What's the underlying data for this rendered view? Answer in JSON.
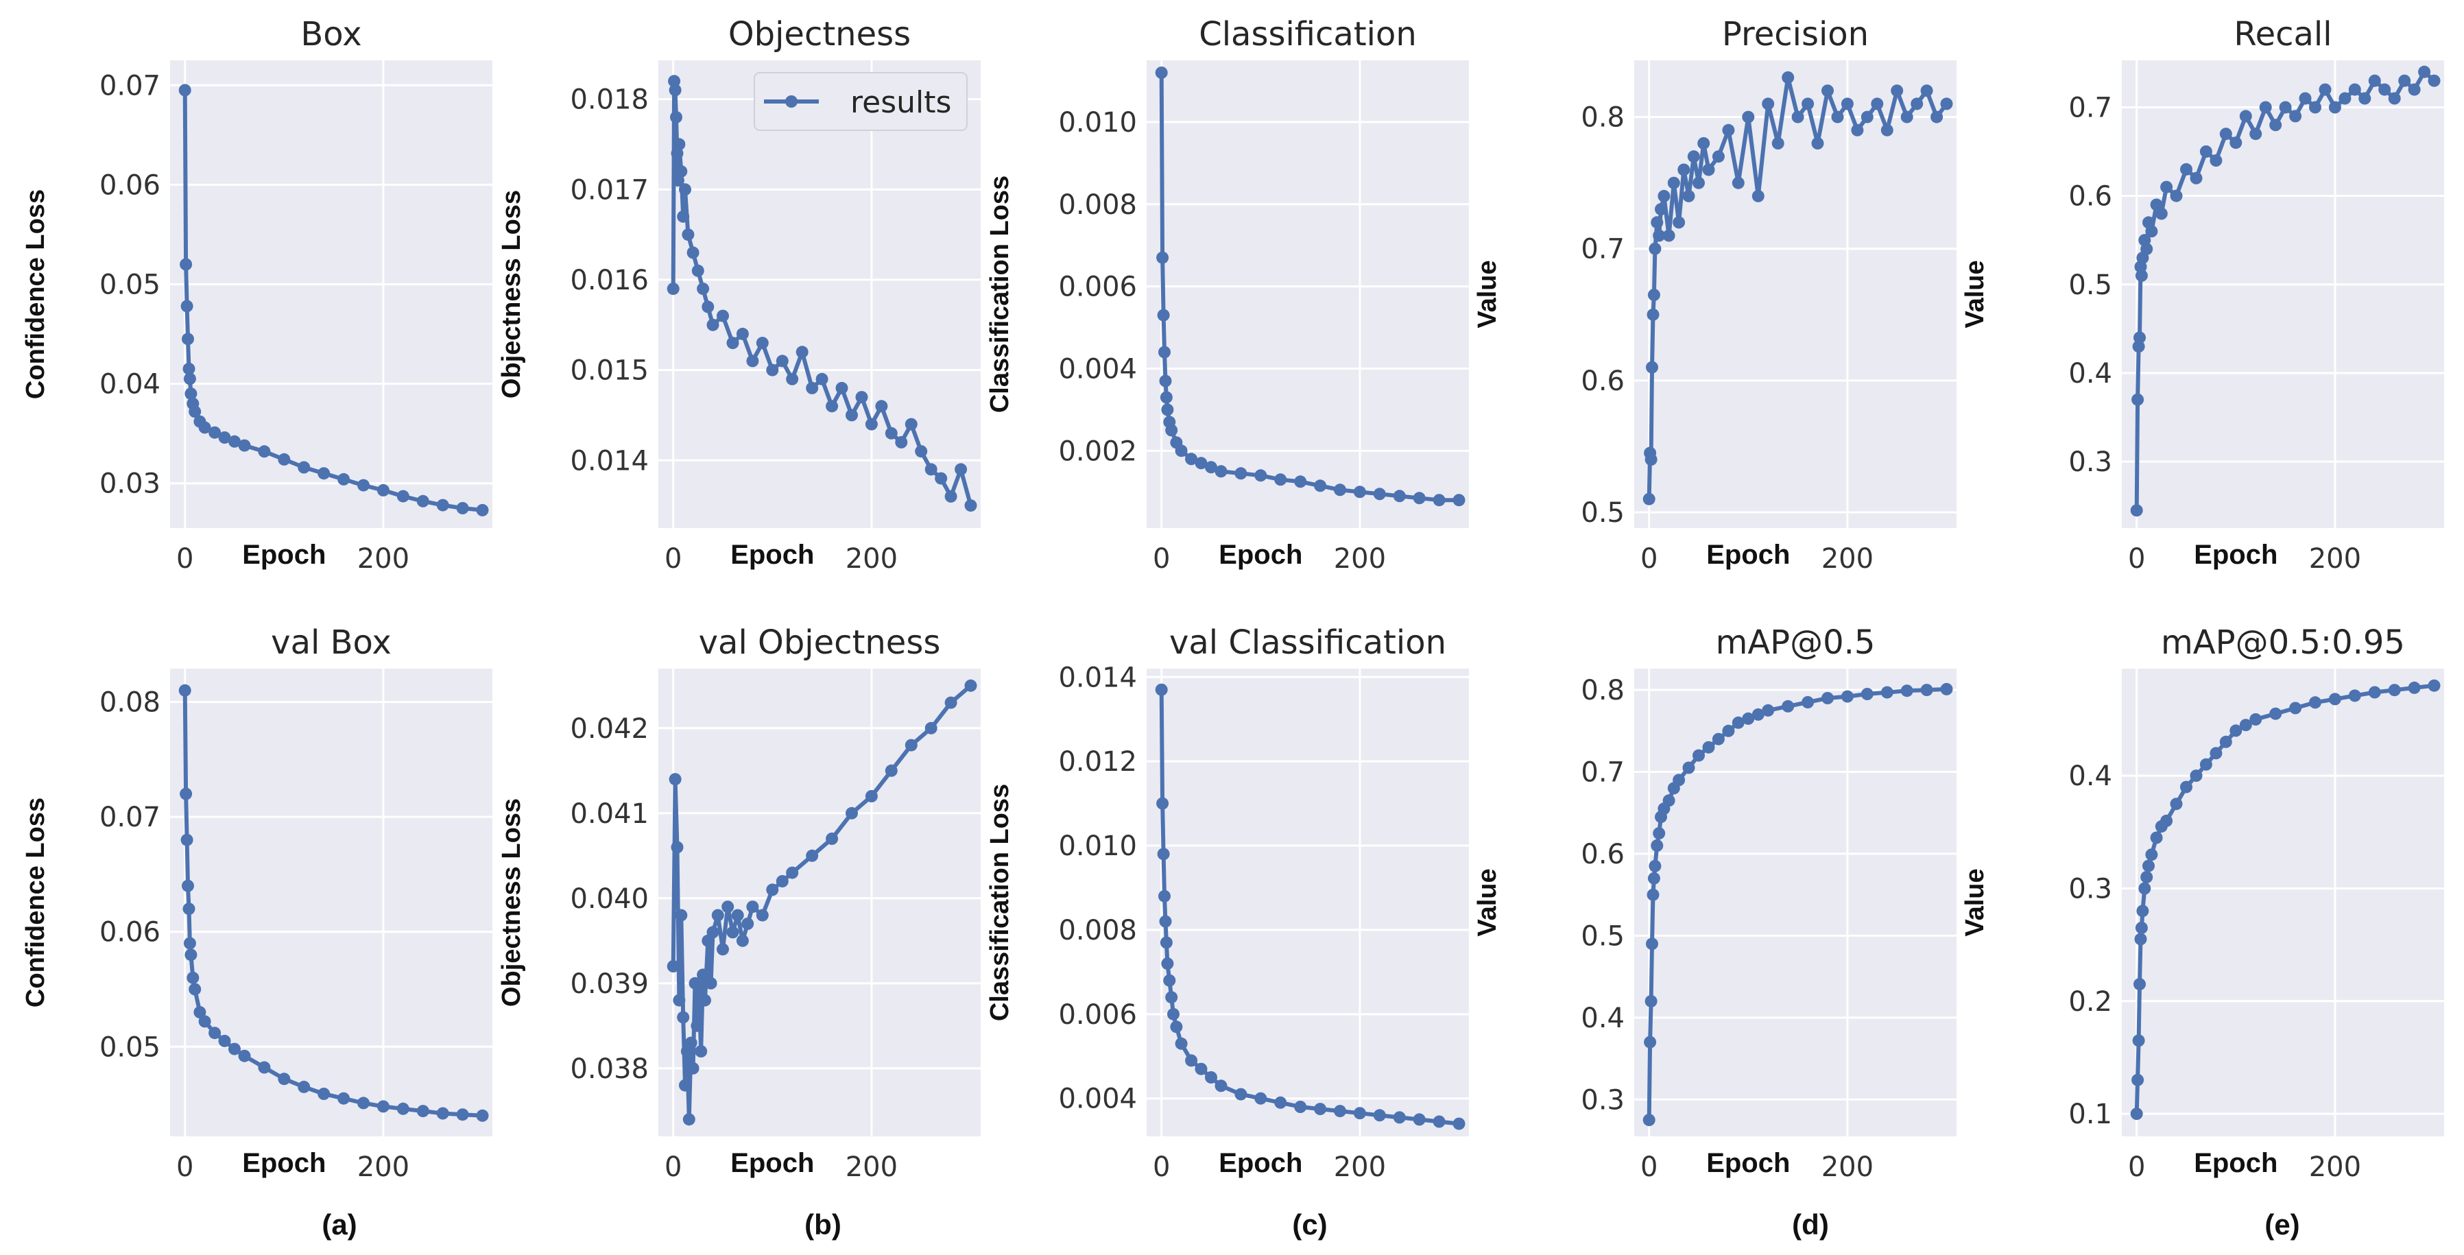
{
  "chart_data": [
    {
      "id": "box",
      "type": "line",
      "title": "Box",
      "xlabel": "Epoch",
      "ylabel": "Confidence Loss",
      "xlim": [
        -15,
        310
      ],
      "ylim": [
        0.0255,
        0.0725
      ],
      "xticks": [
        0,
        200
      ],
      "yticks": [
        0.03,
        0.04,
        0.05,
        0.06,
        0.07
      ],
      "decimals": 2,
      "x": [
        0,
        1,
        2,
        3,
        4,
        5,
        6,
        8,
        10,
        15,
        20,
        30,
        40,
        50,
        60,
        80,
        100,
        120,
        140,
        160,
        180,
        200,
        220,
        240,
        260,
        280,
        300
      ],
      "y": [
        0.0695,
        0.052,
        0.0478,
        0.0445,
        0.0415,
        0.0405,
        0.039,
        0.038,
        0.0372,
        0.0362,
        0.0356,
        0.0351,
        0.0346,
        0.0342,
        0.0338,
        0.0332,
        0.0324,
        0.0316,
        0.031,
        0.0304,
        0.0298,
        0.0293,
        0.0287,
        0.0282,
        0.0278,
        0.0275,
        0.0273
      ]
    },
    {
      "id": "obj",
      "type": "line",
      "title": "Objectness",
      "xlabel": "Epoch",
      "ylabel": "Objectness Loss",
      "xlim": [
        -15,
        310
      ],
      "ylim": [
        0.01325,
        0.01843
      ],
      "xticks": [
        0,
        200
      ],
      "yticks": [
        0.014,
        0.015,
        0.016,
        0.017,
        0.018
      ],
      "decimals": 3,
      "x": [
        0,
        1,
        2,
        3,
        4,
        5,
        6,
        8,
        10,
        12,
        15,
        20,
        25,
        30,
        35,
        40,
        50,
        60,
        70,
        80,
        90,
        100,
        110,
        120,
        130,
        140,
        150,
        160,
        170,
        180,
        190,
        200,
        210,
        220,
        230,
        240,
        250,
        260,
        270,
        280,
        290,
        300
      ],
      "y": [
        0.0159,
        0.0182,
        0.0181,
        0.0178,
        0.0174,
        0.0171,
        0.0175,
        0.0172,
        0.0167,
        0.017,
        0.0165,
        0.0163,
        0.0161,
        0.0159,
        0.0157,
        0.0155,
        0.0156,
        0.0153,
        0.0154,
        0.0151,
        0.0153,
        0.015,
        0.0151,
        0.0149,
        0.0152,
        0.0148,
        0.0149,
        0.0146,
        0.0148,
        0.0145,
        0.0147,
        0.0144,
        0.0146,
        0.0143,
        0.0142,
        0.0144,
        0.0141,
        0.0139,
        0.0138,
        0.0136,
        0.0139,
        0.0135
      ]
    },
    {
      "id": "cls",
      "type": "line",
      "title": "Classification",
      "xlabel": "Epoch",
      "ylabel": "Classification Loss",
      "xlim": [
        -15,
        310
      ],
      "ylim": [
        0.00012,
        0.0115
      ],
      "xticks": [
        0,
        200
      ],
      "yticks": [
        0.002,
        0.004,
        0.006,
        0.008,
        0.01
      ],
      "decimals": 3,
      "x": [
        0,
        1,
        2,
        3,
        4,
        5,
        6,
        8,
        10,
        15,
        20,
        30,
        40,
        50,
        60,
        80,
        100,
        120,
        140,
        160,
        180,
        200,
        220,
        240,
        260,
        280,
        300
      ],
      "y": [
        0.0112,
        0.0067,
        0.0053,
        0.0044,
        0.0037,
        0.0033,
        0.003,
        0.0027,
        0.0025,
        0.0022,
        0.002,
        0.0018,
        0.0017,
        0.0016,
        0.0015,
        0.00145,
        0.0014,
        0.0013,
        0.00125,
        0.00115,
        0.00105,
        0.001,
        0.00095,
        0.0009,
        0.00085,
        0.0008,
        0.0008
      ]
    },
    {
      "id": "prec",
      "type": "line",
      "title": "Precision",
      "xlabel": "Epoch",
      "ylabel": "Value",
      "xlim": [
        -15,
        310
      ],
      "ylim": [
        0.488,
        0.843
      ],
      "xticks": [
        0,
        200
      ],
      "yticks": [
        0.5,
        0.6,
        0.7,
        0.8
      ],
      "decimals": 1,
      "x": [
        0,
        1,
        2,
        3,
        4,
        5,
        6,
        8,
        10,
        12,
        15,
        20,
        25,
        30,
        35,
        40,
        45,
        50,
        55,
        60,
        70,
        80,
        90,
        100,
        110,
        120,
        130,
        140,
        150,
        160,
        170,
        180,
        190,
        200,
        210,
        220,
        230,
        240,
        250,
        260,
        270,
        280,
        290,
        300
      ],
      "y": [
        0.51,
        0.545,
        0.54,
        0.61,
        0.65,
        0.665,
        0.7,
        0.72,
        0.71,
        0.73,
        0.74,
        0.71,
        0.75,
        0.72,
        0.76,
        0.74,
        0.77,
        0.75,
        0.78,
        0.76,
        0.77,
        0.79,
        0.75,
        0.8,
        0.74,
        0.81,
        0.78,
        0.83,
        0.8,
        0.81,
        0.78,
        0.82,
        0.8,
        0.81,
        0.79,
        0.8,
        0.81,
        0.79,
        0.82,
        0.8,
        0.81,
        0.82,
        0.8,
        0.81
      ]
    },
    {
      "id": "rec",
      "type": "line",
      "title": "Recall",
      "xlabel": "Epoch",
      "ylabel": "Value",
      "xlim": [
        -15,
        310
      ],
      "ylim": [
        0.225,
        0.753
      ],
      "xticks": [
        0,
        200
      ],
      "yticks": [
        0.3,
        0.4,
        0.5,
        0.6,
        0.7
      ],
      "decimals": 1,
      "x": [
        0,
        1,
        2,
        3,
        4,
        5,
        6,
        8,
        10,
        12,
        15,
        20,
        25,
        30,
        40,
        50,
        60,
        70,
        80,
        90,
        100,
        110,
        120,
        130,
        140,
        150,
        160,
        170,
        180,
        190,
        200,
        210,
        220,
        230,
        240,
        250,
        260,
        270,
        280,
        290,
        300
      ],
      "y": [
        0.245,
        0.37,
        0.43,
        0.44,
        0.52,
        0.51,
        0.53,
        0.55,
        0.54,
        0.57,
        0.56,
        0.59,
        0.58,
        0.61,
        0.6,
        0.63,
        0.62,
        0.65,
        0.64,
        0.67,
        0.66,
        0.69,
        0.67,
        0.7,
        0.68,
        0.7,
        0.69,
        0.71,
        0.7,
        0.72,
        0.7,
        0.71,
        0.72,
        0.71,
        0.73,
        0.72,
        0.71,
        0.73,
        0.72,
        0.74,
        0.73
      ]
    },
    {
      "id": "vbox",
      "type": "line",
      "title": "val Box",
      "xlabel": "Epoch",
      "ylabel": "Confidence Loss",
      "xlim": [
        -15,
        310
      ],
      "ylim": [
        0.0422,
        0.0829
      ],
      "xticks": [
        0,
        200
      ],
      "yticks": [
        0.05,
        0.06,
        0.07,
        0.08
      ],
      "decimals": 2,
      "x": [
        0,
        1,
        2,
        3,
        4,
        5,
        6,
        8,
        10,
        15,
        20,
        30,
        40,
        50,
        60,
        80,
        100,
        120,
        140,
        160,
        180,
        200,
        220,
        240,
        260,
        280,
        300
      ],
      "y": [
        0.081,
        0.072,
        0.068,
        0.064,
        0.062,
        0.059,
        0.058,
        0.056,
        0.055,
        0.053,
        0.0522,
        0.0512,
        0.0505,
        0.0498,
        0.0492,
        0.0482,
        0.0472,
        0.0465,
        0.0459,
        0.0455,
        0.0451,
        0.0448,
        0.0446,
        0.0444,
        0.0442,
        0.0441,
        0.044
      ]
    },
    {
      "id": "vobj",
      "type": "line",
      "title": "val Objectness",
      "xlabel": "Epoch",
      "ylabel": "Objectness Loss",
      "xlim": [
        -15,
        310
      ],
      "ylim": [
        0.0372,
        0.0427
      ],
      "xticks": [
        0,
        200
      ],
      "yticks": [
        0.038,
        0.039,
        0.04,
        0.041,
        0.042
      ],
      "decimals": 3,
      "x": [
        0,
        2,
        4,
        6,
        8,
        10,
        12,
        14,
        16,
        18,
        20,
        22,
        24,
        26,
        28,
        30,
        32,
        35,
        38,
        40,
        45,
        50,
        55,
        60,
        65,
        70,
        75,
        80,
        90,
        100,
        110,
        120,
        140,
        160,
        180,
        200,
        220,
        240,
        260,
        280,
        300
      ],
      "y": [
        0.0392,
        0.0414,
        0.0406,
        0.0388,
        0.0398,
        0.0386,
        0.0378,
        0.0382,
        0.0374,
        0.0383,
        0.038,
        0.039,
        0.0385,
        0.0389,
        0.0382,
        0.0391,
        0.0388,
        0.0395,
        0.039,
        0.0396,
        0.0398,
        0.0394,
        0.0399,
        0.0396,
        0.0398,
        0.0395,
        0.0397,
        0.0399,
        0.0398,
        0.0401,
        0.0402,
        0.0403,
        0.0405,
        0.0407,
        0.041,
        0.0412,
        0.0415,
        0.0418,
        0.042,
        0.0423,
        0.0425
      ]
    },
    {
      "id": "vcls",
      "type": "line",
      "title": "val Classification",
      "xlabel": "Epoch",
      "ylabel": "Classification Loss",
      "xlim": [
        -15,
        310
      ],
      "ylim": [
        0.0031,
        0.0142
      ],
      "xticks": [
        0,
        200
      ],
      "yticks": [
        0.004,
        0.006,
        0.008,
        0.01,
        0.012,
        0.014
      ],
      "decimals": 3,
      "x": [
        0,
        1,
        2,
        3,
        4,
        5,
        6,
        8,
        10,
        12,
        15,
        20,
        30,
        40,
        50,
        60,
        80,
        100,
        120,
        140,
        160,
        180,
        200,
        220,
        240,
        260,
        280,
        300
      ],
      "y": [
        0.0137,
        0.011,
        0.0098,
        0.0088,
        0.0082,
        0.0077,
        0.0072,
        0.0068,
        0.0064,
        0.006,
        0.0057,
        0.0053,
        0.0049,
        0.0047,
        0.0045,
        0.0043,
        0.0041,
        0.004,
        0.0039,
        0.0038,
        0.00375,
        0.0037,
        0.00365,
        0.0036,
        0.00355,
        0.0035,
        0.00345,
        0.0034
      ]
    },
    {
      "id": "map",
      "type": "line",
      "title": "mAP@0.5",
      "xlabel": "Epoch",
      "ylabel": "Value",
      "xlim": [
        -15,
        310
      ],
      "ylim": [
        0.255,
        0.826
      ],
      "xticks": [
        0,
        200
      ],
      "yticks": [
        0.3,
        0.4,
        0.5,
        0.6,
        0.7,
        0.8
      ],
      "decimals": 1,
      "x": [
        0,
        1,
        2,
        3,
        4,
        5,
        6,
        8,
        10,
        12,
        15,
        20,
        25,
        30,
        40,
        50,
        60,
        70,
        80,
        90,
        100,
        110,
        120,
        140,
        160,
        180,
        200,
        220,
        240,
        260,
        280,
        300
      ],
      "y": [
        0.275,
        0.37,
        0.42,
        0.49,
        0.55,
        0.57,
        0.585,
        0.61,
        0.625,
        0.645,
        0.655,
        0.665,
        0.68,
        0.69,
        0.705,
        0.72,
        0.73,
        0.74,
        0.75,
        0.76,
        0.765,
        0.77,
        0.775,
        0.78,
        0.785,
        0.79,
        0.792,
        0.795,
        0.797,
        0.799,
        0.8,
        0.801
      ]
    },
    {
      "id": "map95",
      "type": "line",
      "title": "mAP@0.5:0.95",
      "xlabel": "Epoch",
      "ylabel": "Value",
      "xlim": [
        -15,
        310
      ],
      "ylim": [
        0.08,
        0.495
      ],
      "xticks": [
        0,
        200
      ],
      "yticks": [
        0.1,
        0.2,
        0.3,
        0.4
      ],
      "decimals": 1,
      "x": [
        0,
        1,
        2,
        3,
        4,
        5,
        6,
        8,
        10,
        12,
        15,
        20,
        25,
        30,
        40,
        50,
        60,
        70,
        80,
        90,
        100,
        110,
        120,
        140,
        160,
        180,
        200,
        220,
        240,
        260,
        280,
        300
      ],
      "y": [
        0.1,
        0.13,
        0.165,
        0.215,
        0.255,
        0.265,
        0.28,
        0.3,
        0.31,
        0.32,
        0.33,
        0.345,
        0.355,
        0.36,
        0.375,
        0.39,
        0.4,
        0.41,
        0.42,
        0.43,
        0.44,
        0.445,
        0.45,
        0.455,
        0.46,
        0.465,
        0.468,
        0.471,
        0.474,
        0.476,
        0.478,
        0.48
      ]
    }
  ],
  "legend": {
    "label": "results",
    "placement": "top-right of Objectness panel"
  },
  "captions": [
    "(a)",
    "(b)",
    "(c)",
    "(d)",
    "(e)"
  ],
  "colors": {
    "line": "#4c72b0",
    "panel_bg": "#eaeaf2",
    "grid": "#ffffff"
  }
}
